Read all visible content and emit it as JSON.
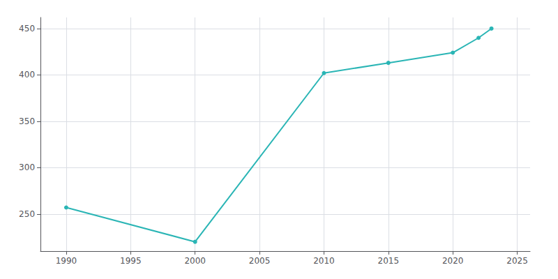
{
  "chart_data": {
    "type": "line",
    "x": [
      1990,
      2000,
      2010,
      2015,
      2020,
      2022,
      2023
    ],
    "values": [
      257,
      220,
      402,
      413,
      424,
      440,
      450
    ],
    "color": "#2ab5b5",
    "marker": "circle",
    "xlim": [
      1988,
      2026
    ],
    "ylim": [
      210,
      462
    ],
    "xticks": [
      1990,
      1995,
      2000,
      2005,
      2010,
      2015,
      2020,
      2025
    ],
    "yticks": [
      250,
      300,
      350,
      400,
      450
    ],
    "grid": true
  }
}
